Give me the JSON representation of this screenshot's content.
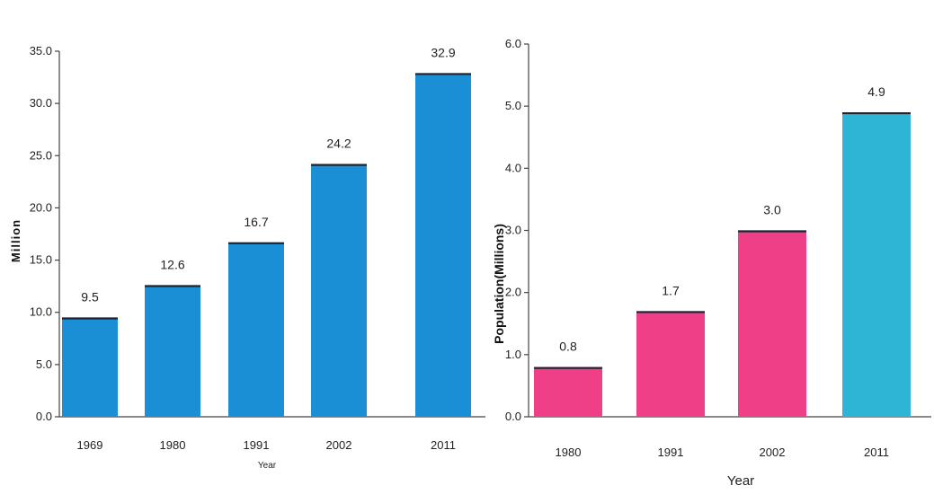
{
  "chart_data": [
    {
      "type": "bar",
      "categories": [
        "1969",
        "1980",
        "1991",
        "2002",
        "2011"
      ],
      "values": [
        9.5,
        12.6,
        16.7,
        24.2,
        32.9
      ],
      "data_labels": [
        "9.5",
        "12.6",
        "16.7",
        "24.2",
        "32.9"
      ],
      "yticks": [
        "0.0",
        "5.0",
        "10.0",
        "15.0",
        "20.0",
        "25.0",
        "30.0",
        "35.0"
      ],
      "ylim": [
        0,
        35
      ],
      "title": "",
      "xlabel": "Year",
      "ylabel": "Million",
      "bar_colors": [
        "#1a8fd6",
        "#1a8fd6",
        "#1a8fd6",
        "#1a8fd6",
        "#1a8fd6"
      ],
      "grid": false
    },
    {
      "type": "bar",
      "categories": [
        "1980",
        "1991",
        "2002",
        "2011"
      ],
      "values": [
        0.8,
        1.7,
        3.0,
        4.9
      ],
      "data_labels": [
        "0.8",
        "1.7",
        "3.0",
        "4.9"
      ],
      "yticks": [
        "0.0",
        "1.0",
        "2.0",
        "3.0",
        "4.0",
        "5.0",
        "6.0"
      ],
      "ylim": [
        0,
        6
      ],
      "title": "",
      "xlabel": "Year",
      "ylabel": "Population(Millions)",
      "bar_colors": [
        "#ee3f87",
        "#ee3f87",
        "#ee3f87",
        "#2eb5d6"
      ],
      "grid": false
    }
  ]
}
